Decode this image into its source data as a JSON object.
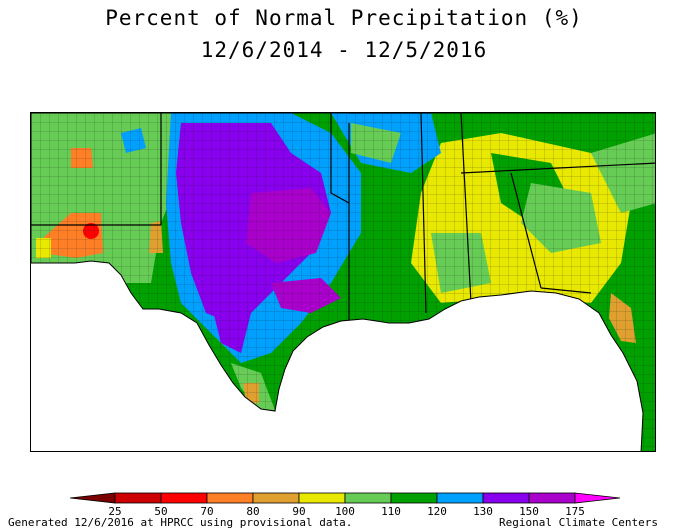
{
  "title": {
    "line1": "Percent of Normal Precipitation (%)",
    "line2": "12/6/2014 - 12/5/2016"
  },
  "legend": {
    "bins": [
      {
        "color": "#7a0000"
      },
      {
        "color": "#cc0000"
      },
      {
        "color": "#ff0000"
      },
      {
        "color": "#ff7f27"
      },
      {
        "color": "#e0a030"
      },
      {
        "color": "#e8e800"
      },
      {
        "color": "#66cc55"
      },
      {
        "color": "#00a000"
      },
      {
        "color": "#00a0ff"
      },
      {
        "color": "#8800ee"
      },
      {
        "color": "#aa00cc"
      },
      {
        "color": "#ff00ff"
      }
    ],
    "ticks": [
      "25",
      "50",
      "70",
      "80",
      "90",
      "100",
      "110",
      "120",
      "130",
      "150",
      "175"
    ]
  },
  "footer": {
    "left": "Generated 12/6/2016 at HPRCC using provisional data.",
    "right": "Regional Climate Centers"
  },
  "map": {
    "region": "Southern United States",
    "background_color": "#ffffff",
    "border_color": "#000000"
  }
}
